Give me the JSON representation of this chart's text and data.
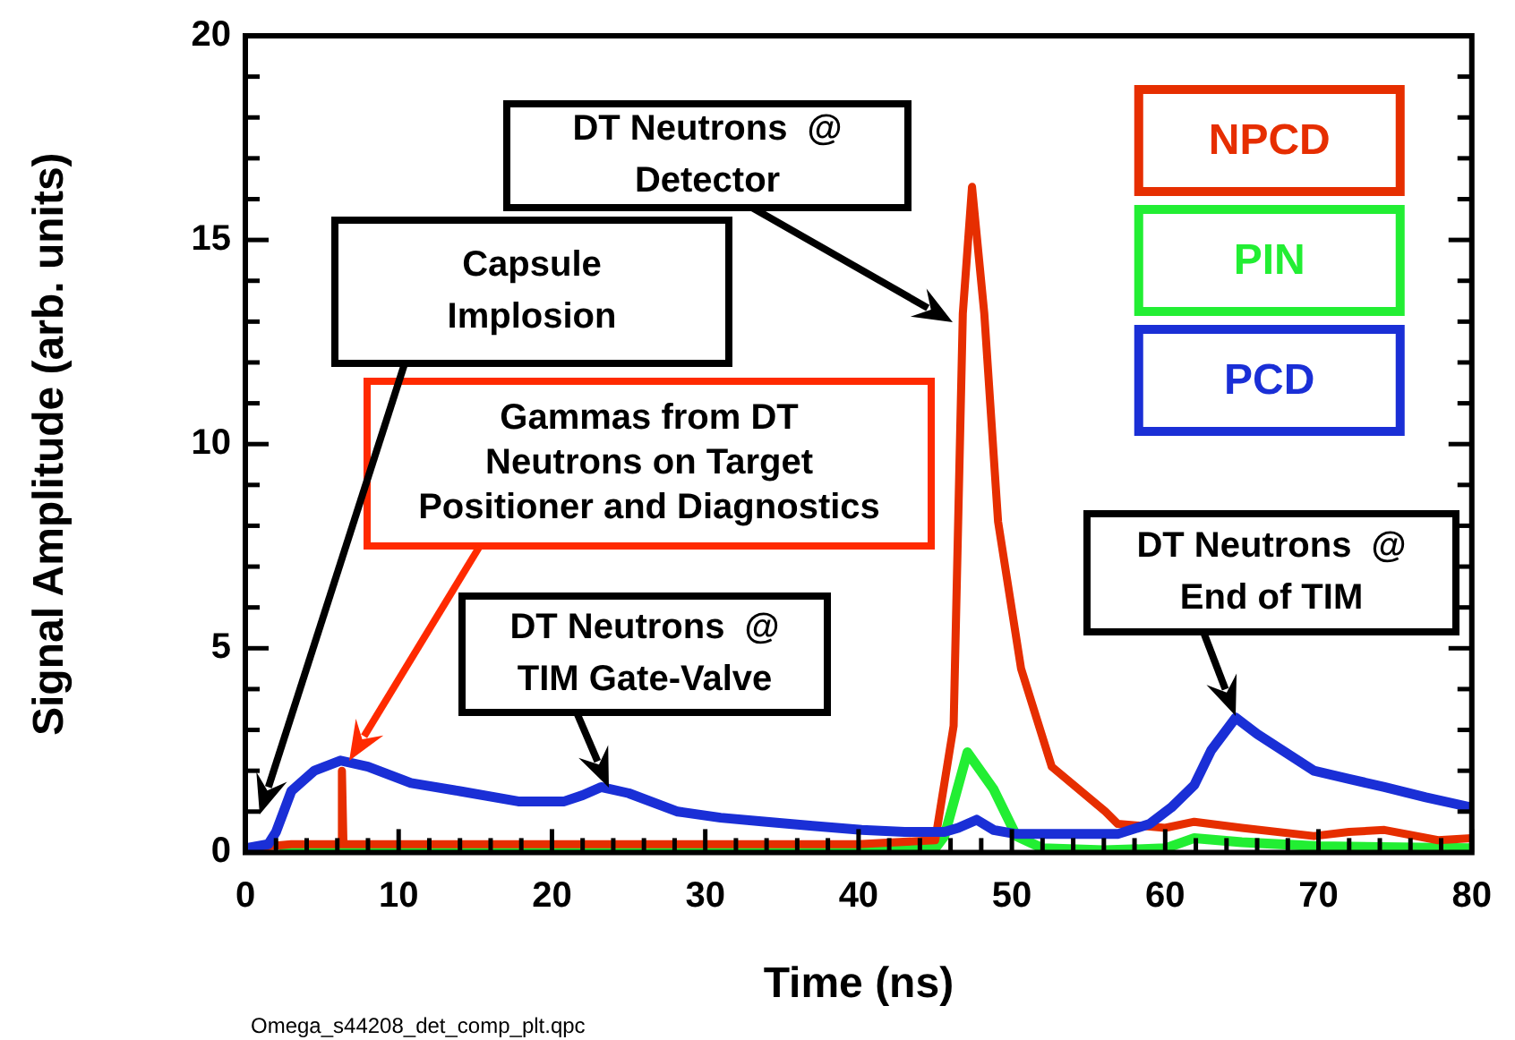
{
  "chart_data": {
    "type": "line",
    "xlabel": "Time (ns)",
    "ylabel": "Signal Amplitude (arb. units)",
    "xlim": [
      0,
      80
    ],
    "ylim": [
      0,
      20
    ],
    "xticks": [
      0,
      {
        "value": 2,
        "label": null
      },
      {
        "value": 4,
        "label": null
      },
      {
        "value": 6,
        "label": null
      },
      {
        "value": 8,
        "label": null
      },
      10,
      {
        "value": 12,
        "label": null
      },
      {
        "value": 14,
        "label": null
      },
      {
        "value": 16,
        "label": null
      },
      {
        "value": 18,
        "label": null
      },
      20,
      {
        "value": 22,
        "label": null
      },
      {
        "value": 24,
        "label": null
      },
      {
        "value": 26,
        "label": null
      },
      {
        "value": 28,
        "label": null
      },
      30,
      {
        "value": 32,
        "label": null
      },
      {
        "value": 34,
        "label": null
      },
      {
        "value": 36,
        "label": null
      },
      {
        "value": 38,
        "label": null
      },
      40,
      {
        "value": 42,
        "label": null
      },
      {
        "value": 44,
        "label": null
      },
      {
        "value": 46,
        "label": null
      },
      {
        "value": 48,
        "label": null
      },
      50,
      {
        "value": 52,
        "label": null
      },
      {
        "value": 54,
        "label": null
      },
      {
        "value": 56,
        "label": null
      },
      {
        "value": 58,
        "label": null
      },
      60,
      {
        "value": 62,
        "label": null
      },
      {
        "value": 64,
        "label": null
      },
      {
        "value": 66,
        "label": null
      },
      {
        "value": 68,
        "label": null
      },
      70,
      {
        "value": 72,
        "label": null
      },
      {
        "value": 74,
        "label": null
      },
      {
        "value": 76,
        "label": null
      },
      {
        "value": 78,
        "label": null
      },
      80
    ],
    "yticks": [
      0,
      {
        "value": 1,
        "label": null
      },
      {
        "value": 2,
        "label": null
      },
      {
        "value": 3,
        "label": null
      },
      {
        "value": 4,
        "label": null
      },
      5,
      {
        "value": 6,
        "label": null
      },
      {
        "value": 7,
        "label": null
      },
      {
        "value": 8,
        "label": null
      },
      {
        "value": 9,
        "label": null
      },
      10,
      {
        "value": 11,
        "label": null
      },
      {
        "value": 12,
        "label": null
      },
      {
        "value": 13,
        "label": null
      },
      {
        "value": 14,
        "label": null
      },
      15,
      {
        "value": 16,
        "label": null
      },
      {
        "value": 17,
        "label": null
      },
      {
        "value": 18,
        "label": null
      },
      {
        "value": 19,
        "label": null
      },
      20
    ],
    "grid": false,
    "legend": "top right",
    "marker": "none",
    "line_style": "solid",
    "series": [
      {
        "name": "NPCD",
        "color": "#e62e00",
        "x": [
          0,
          3,
          6.2,
          6.3,
          6.4,
          10,
          20,
          30,
          40,
          45,
          46.2,
          46.8,
          47.4,
          48.2,
          49.1,
          50.6,
          52.6,
          56.1,
          56.9,
          60,
          61.9,
          65,
          69.7,
          72,
          74.3,
          77.8,
          80
        ],
        "values": [
          0.1,
          0.2,
          0.2,
          2.0,
          0.2,
          0.2,
          0.2,
          0.2,
          0.2,
          0.3,
          3.1,
          13.2,
          16.3,
          13.2,
          8.1,
          4.5,
          2.1,
          1.0,
          0.7,
          0.6,
          0.75,
          0.6,
          0.4,
          0.5,
          0.55,
          0.3,
          0.35
        ]
      },
      {
        "name": "PIN",
        "color": "#22ee33",
        "x": [
          2.5,
          10,
          20,
          30,
          40,
          45,
          45.6,
          47.1,
          48.8,
          50.3,
          52,
          56,
          60,
          61.9,
          65,
          70,
          80
        ],
        "values": [
          0.1,
          0.1,
          0.1,
          0.1,
          0.1,
          0.1,
          0.4,
          2.45,
          1.55,
          0.4,
          0.1,
          0.05,
          0.1,
          0.35,
          0.25,
          0.15,
          0.1
        ]
      },
      {
        "name": "PCD",
        "color": "#1a2fd6",
        "x": [
          0,
          1.5,
          2,
          3,
          4.5,
          6.2,
          8,
          10.8,
          14,
          17.8,
          20.8,
          22,
          23.2,
          25,
          28.2,
          31,
          34,
          37,
          40.2,
          43,
          45.6,
          46.5,
          47.7,
          48.8,
          50.3,
          53,
          56.9,
          59,
          60.4,
          61.9,
          63,
          64.6,
          66,
          69.7,
          72,
          74.3,
          77,
          80
        ],
        "values": [
          0.1,
          0.2,
          0.5,
          1.5,
          2.0,
          2.25,
          2.1,
          1.7,
          1.5,
          1.25,
          1.25,
          1.4,
          1.6,
          1.45,
          1.0,
          0.85,
          0.75,
          0.65,
          0.55,
          0.5,
          0.5,
          0.6,
          0.8,
          0.55,
          0.45,
          0.45,
          0.45,
          0.7,
          1.1,
          1.65,
          2.5,
          3.3,
          2.9,
          2.0,
          1.8,
          1.6,
          1.35,
          1.1
        ]
      }
    ],
    "annotations": [
      "Capsule Implosion",
      "Gammas from DT Neutrons on Target Positioner and Diagnostics",
      "DT Neutrons  @ TIM Gate-Valve",
      "DT Neutrons  @ Detector",
      "DT Neutrons  @ End of TIM",
      "Omega_s44208_det_comp_plt.qpc"
    ]
  }
}
